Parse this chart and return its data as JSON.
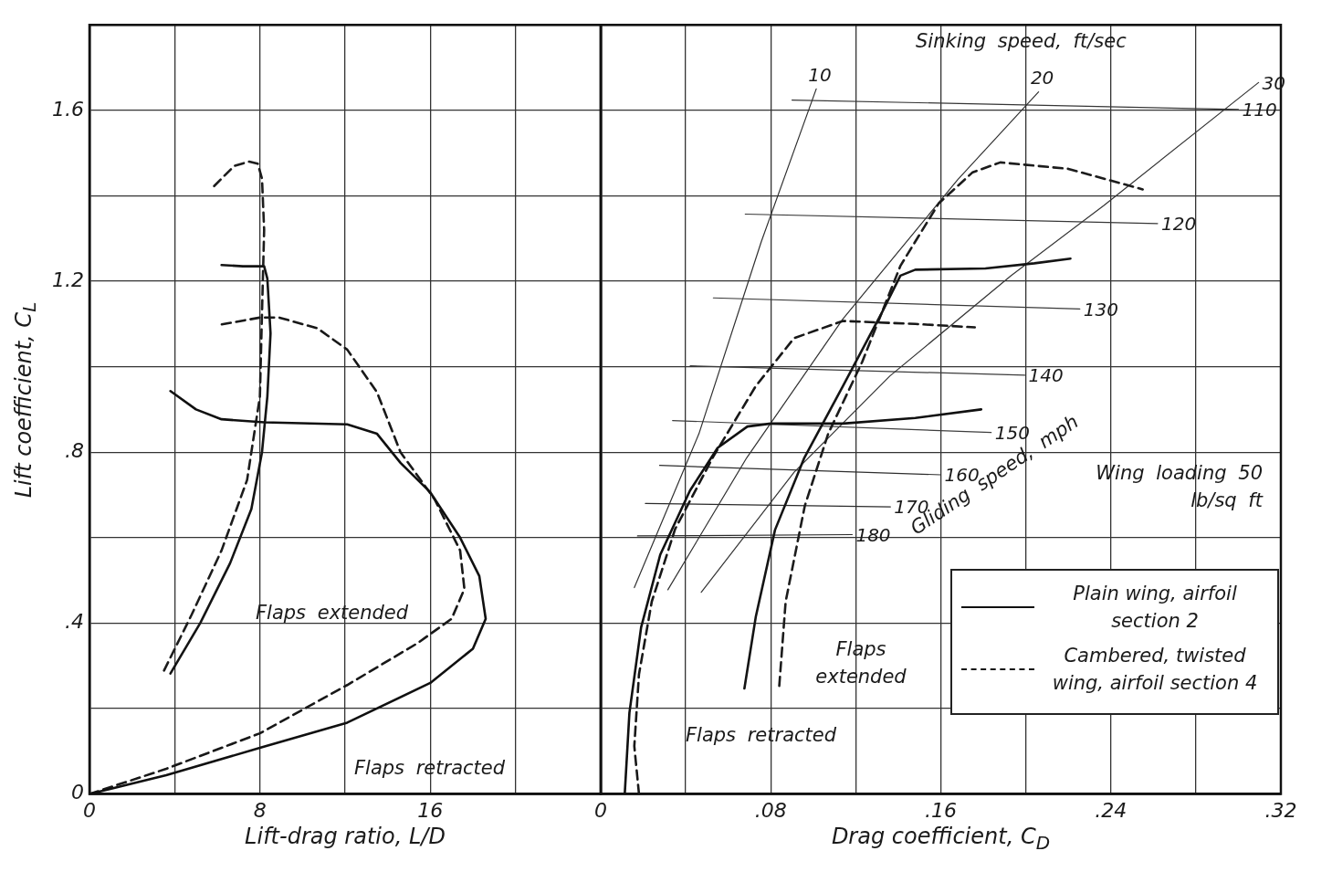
{
  "chart_data": [
    {
      "type": "line",
      "xlabel": "Lift-drag ratio, L/D",
      "ylabel": "Lift coefficient, C$_{L}$",
      "xlim": [
        0,
        24
      ],
      "xticks": [
        0,
        {
          "value": 4,
          "label": null
        },
        8,
        {
          "value": 12,
          "label": null
        },
        16,
        {
          "value": 20,
          "label": null
        },
        {
          "value": 24,
          "label": null
        }
      ],
      "ylim": [
        0,
        1.8
      ],
      "yticks": [
        0,
        {
          "value": 0.2,
          "label": null
        },
        {
          "value": 0.4,
          "label": ".4"
        },
        {
          "value": 0.6,
          "label": null
        },
        {
          "value": 0.8,
          "label": ".8"
        },
        {
          "value": 1,
          "label": null
        },
        1.2,
        {
          "value": 1.4,
          "label": null
        },
        1.6,
        {
          "value": 1.8,
          "label": null
        }
      ],
      "grid": true,
      "annotations": [
        "Flaps extended",
        "Flaps retracted"
      ],
      "series": [
        {
          "color": "#101010",
          "line_style": "solid",
          "x": [
            0,
            3.6,
            8,
            12.1,
            16,
            18,
            18.6,
            18.3,
            17.4,
            16,
            14.6,
            13.5,
            12.1,
            8.2,
            6.2,
            5,
            3.8
          ],
          "values": [
            0,
            0.044,
            0.108,
            0.167,
            0.26,
            0.34,
            0.41,
            0.51,
            0.6,
            0.706,
            0.775,
            0.843,
            0.865,
            0.87,
            0.877,
            0.9,
            0.943
          ]
        },
        {
          "color": "#181818",
          "line_style": "dashed",
          "x": [
            0,
            3.6,
            8,
            12.1,
            15.4,
            17,
            17.6,
            17.4,
            16.2,
            14.6,
            13.5,
            12.1,
            10.7,
            8.9,
            8,
            6.1
          ],
          "values": [
            0,
            0.059,
            0.142,
            0.255,
            0.353,
            0.41,
            0.48,
            0.57,
            0.69,
            0.8,
            0.94,
            1.04,
            1.09,
            1.115,
            1.115,
            1.098
          ]
        },
        {
          "color": "#141414",
          "line_style": "solid",
          "x": [
            3.8,
            5.2,
            6.6,
            7.6,
            8.1,
            8.35,
            8.5,
            8.35,
            8.2,
            7.2,
            6.2
          ],
          "values": [
            0.282,
            0.4,
            0.54,
            0.667,
            0.8,
            0.93,
            1.078,
            1.206,
            1.235,
            1.235,
            1.238
          ]
        },
        {
          "color": "#1c1c1c",
          "line_style": "dashed",
          "x": [
            3.5,
            4.8,
            6.2,
            7.4,
            8,
            8.1,
            8.2,
            8.1,
            7.9,
            7.5,
            6.8,
            5.8
          ],
          "values": [
            0.289,
            0.42,
            0.57,
            0.735,
            0.93,
            1.127,
            1.32,
            1.44,
            1.475,
            1.48,
            1.47,
            1.42
          ]
        }
      ]
    },
    {
      "type": "line",
      "xlabel": "Drag coefficient, C$_{D}$",
      "xlim": [
        0,
        0.32
      ],
      "xticks": [
        0,
        {
          "value": 0.04,
          "label": null
        },
        {
          "value": 0.08,
          "label": ".08"
        },
        {
          "value": 0.12,
          "label": null
        },
        {
          "value": 0.16,
          "label": ".16"
        },
        {
          "value": 0.2,
          "label": null
        },
        {
          "value": 0.24,
          "label": ".24"
        },
        {
          "value": 0.28,
          "label": null
        },
        {
          "value": 0.32,
          "label": ".32"
        }
      ],
      "ylim": [
        0,
        1.8
      ],
      "yticks": [
        0,
        0.2,
        0.4,
        0.6,
        0.8,
        1,
        1.2,
        1.4,
        1.6,
        1.8
      ],
      "tick_labels": "x",
      "grid": true,
      "legend": "bottom right",
      "annotations": [
        "Sinking speed, ft/sec",
        "Gliding speed, mph",
        "Wing loading 50 lb/sq ft",
        "Flaps extended",
        "Flaps retracted"
      ],
      "series": [
        {
          "name": "Plain wing, airfoil section 2",
          "color": "#101010",
          "line_style": "solid",
          "x": [
            0.0113,
            0.0135,
            0.019,
            0.028,
            0.042,
            0.055,
            0.069,
            0.08,
            0.114,
            0.148,
            0.179
          ],
          "values": [
            0,
            0.19,
            0.39,
            0.56,
            0.71,
            0.81,
            0.86,
            0.867,
            0.867,
            0.88,
            0.9
          ]
        },
        {
          "name": "Cambered, twisted wing, airfoil section 4",
          "color": "#181818",
          "line_style": "dashed",
          "x": [
            0.018,
            0.0158,
            0.018,
            0.024,
            0.035,
            0.053,
            0.073,
            0.091,
            0.114,
            0.148,
            0.176
          ],
          "values": [
            0,
            0.112,
            0.28,
            0.45,
            0.62,
            0.79,
            0.955,
            1.067,
            1.107,
            1.1,
            1.092
          ]
        },
        {
          "color": "#141414",
          "line_style": "solid",
          "x": [
            0.0676,
            0.073,
            0.082,
            0.0958,
            0.114,
            0.132,
            0.141,
            0.148,
            0.181,
            0.204,
            0.221
          ],
          "values": [
            0.247,
            0.416,
            0.618,
            0.787,
            0.955,
            1.124,
            1.213,
            1.227,
            1.23,
            1.242,
            1.253
          ]
        },
        {
          "color": "#1c1c1c",
          "line_style": "dashed",
          "x": [
            0.084,
            0.087,
            0.096,
            0.107,
            0.123,
            0.141,
            0.159,
            0.175,
            0.188,
            0.22,
            0.255
          ],
          "values": [
            0.253,
            0.45,
            0.674,
            0.843,
            1.011,
            1.236,
            1.382,
            1.455,
            1.478,
            1.463,
            1.415
          ]
        },
        {
          "name": "10",
          "color": "#303030",
          "x": [
            0.0158,
            0.0462,
            0.0755,
            0.1014
          ],
          "values": [
            0.483,
            0.843,
            1.292,
            1.65
          ]
        },
        {
          "name": "20",
          "color": "#323232",
          "x": [
            0.0316,
            0.0687,
            0.114,
            0.168,
            0.206
          ],
          "values": [
            0.478,
            0.787,
            1.112,
            1.438,
            1.643
          ]
        },
        {
          "name": "30",
          "color": "#343434",
          "x": [
            0.0473,
            0.091,
            0.136,
            0.193,
            0.2366,
            0.3095
          ],
          "values": [
            0.472,
            0.753,
            0.978,
            1.213,
            1.377,
            1.665
          ]
        },
        {
          "name": "110",
          "color": "#363636",
          "x": [
            0.09,
            0.3
          ],
          "values": [
            1.624,
            1.602
          ]
        },
        {
          "name": "120",
          "color": "#383838",
          "x": [
            0.068,
            0.262
          ],
          "values": [
            1.357,
            1.335
          ]
        },
        {
          "name": "130",
          "color": "#3a3a3a",
          "x": [
            0.053,
            0.2254
          ],
          "values": [
            1.161,
            1.135
          ]
        },
        {
          "name": "140",
          "color": "#3c3c3c",
          "x": [
            0.0421,
            0.1995
          ],
          "values": [
            1.002,
            0.98
          ]
        },
        {
          "name": "150",
          "color": "#3e3e3e",
          "x": [
            0.0338,
            0.1837
          ],
          "values": [
            0.874,
            0.846
          ]
        },
        {
          "name": "160",
          "color": "#2e2e2e",
          "x": [
            0.0277,
            0.16
          ],
          "values": [
            0.769,
            0.747
          ]
        },
        {
          "name": "170",
          "color": "#2c2c2c",
          "x": [
            0.021,
            0.1363
          ],
          "values": [
            0.68,
            0.672
          ]
        },
        {
          "name": "180",
          "color": "#2a2a2a",
          "x": [
            0.0173,
            0.1183
          ],
          "values": [
            0.604,
            0.607
          ]
        }
      ]
    }
  ]
}
